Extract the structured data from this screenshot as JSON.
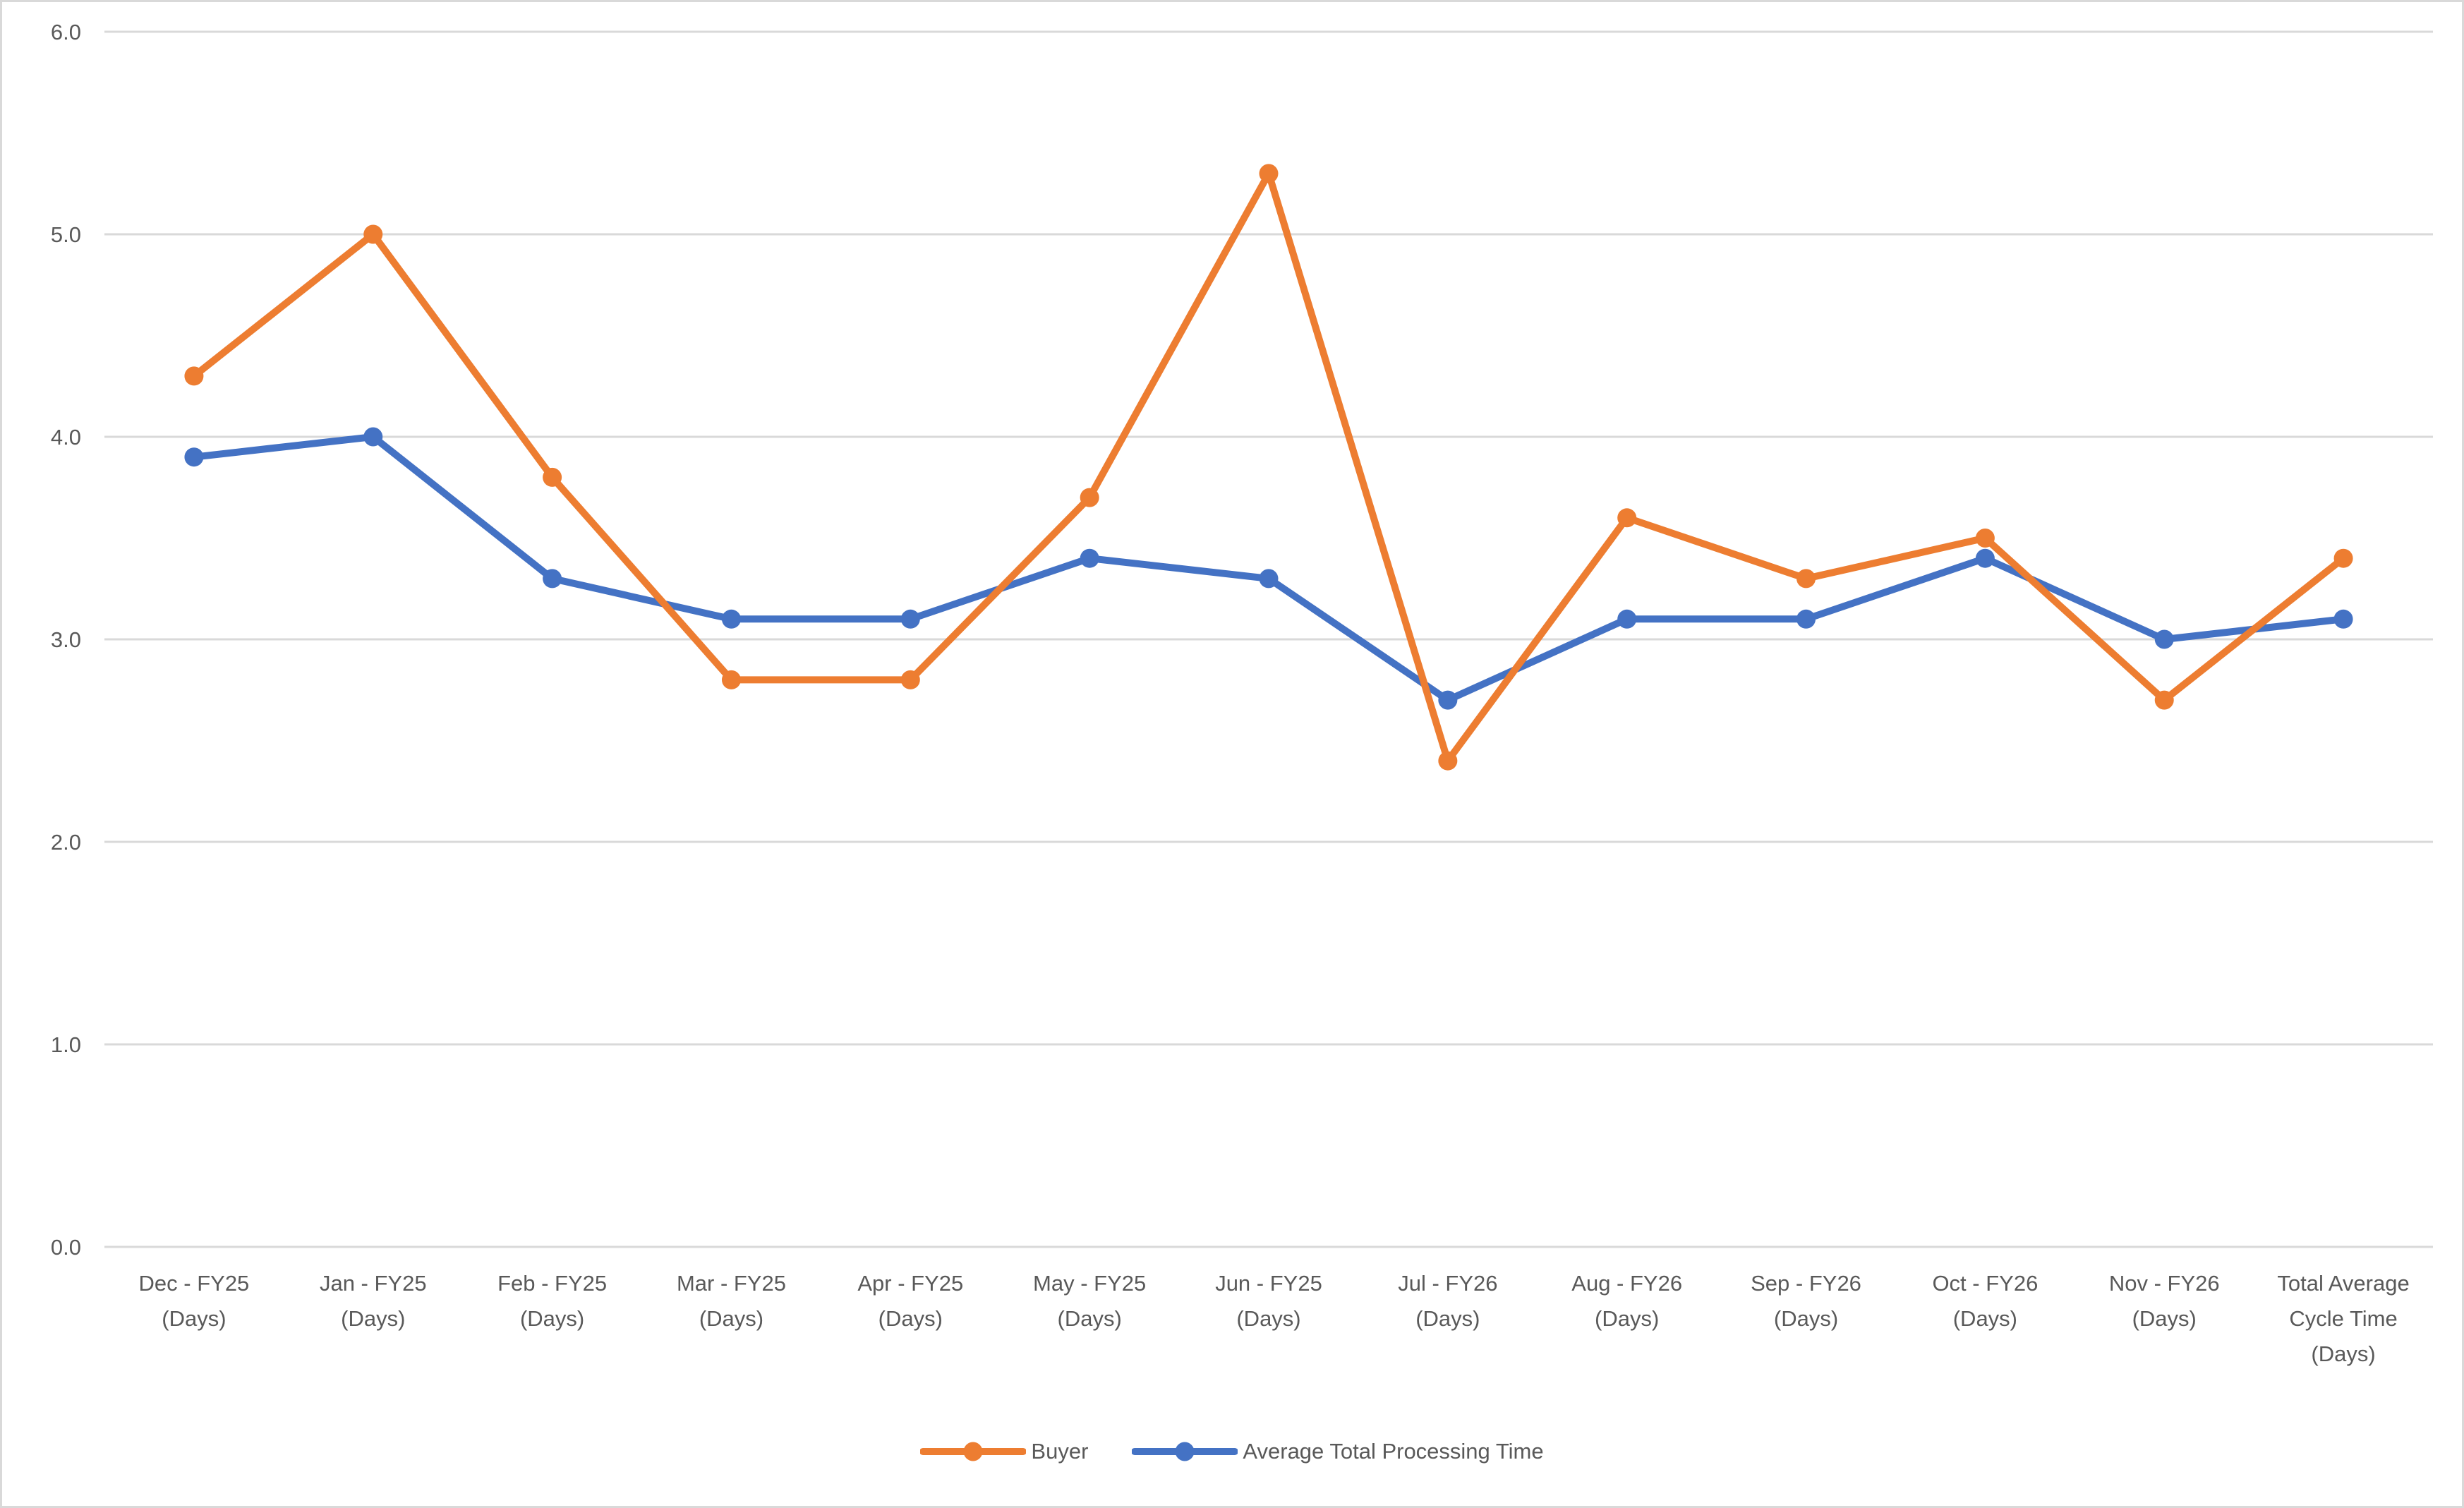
{
  "chart_data": {
    "type": "line",
    "title": "",
    "categories": [
      "Dec - FY25 (Days)",
      "Jan - FY25 (Days)",
      "Feb - FY25 (Days)",
      "Mar - FY25 (Days)",
      "Apr - FY25 (Days)",
      "May - FY25 (Days)",
      "Jun - FY25 (Days)",
      "Jul - FY26 (Days)",
      "Aug - FY26 (Days)",
      "Sep - FY26 (Days)",
      "Oct - FY26 (Days)",
      "Nov - FY26 (Days)",
      "Total Average Cycle Time (Days)"
    ],
    "category_label_lines": [
      [
        "Dec - FY25",
        "(Days)"
      ],
      [
        "Jan - FY25",
        "(Days)"
      ],
      [
        "Feb - FY25",
        "(Days)"
      ],
      [
        "Mar - FY25",
        "(Days)"
      ],
      [
        "Apr - FY25",
        "(Days)"
      ],
      [
        "May - FY25",
        "(Days)"
      ],
      [
        "Jun - FY25",
        "(Days)"
      ],
      [
        "Jul - FY26",
        "(Days)"
      ],
      [
        "Aug - FY26",
        "(Days)"
      ],
      [
        "Sep - FY26",
        "(Days)"
      ],
      [
        "Oct - FY26",
        "(Days)"
      ],
      [
        "Nov - FY26",
        "(Days)"
      ],
      [
        "Total Average",
        "Cycle Time",
        "(Days)"
      ]
    ],
    "series": [
      {
        "name": "Buyer",
        "color": "#ED7D31",
        "values": [
          4.3,
          5.0,
          3.8,
          2.8,
          2.8,
          3.7,
          5.3,
          2.4,
          3.6,
          3.3,
          3.5,
          2.7,
          3.4
        ]
      },
      {
        "name": "Average Total Processing Time",
        "color": "#4472C4",
        "values": [
          3.9,
          4.0,
          3.3,
          3.1,
          3.1,
          3.4,
          3.3,
          2.7,
          3.1,
          3.1,
          3.4,
          3.0,
          3.1
        ]
      }
    ],
    "y_axis": {
      "min": 0,
      "max": 6,
      "step": 1,
      "tick_labels": [
        "0.0",
        "1.0",
        "2.0",
        "3.0",
        "4.0",
        "5.0",
        "6.0"
      ]
    },
    "grid": true,
    "legend_position": "bottom",
    "style": {
      "gridline_color": "#D9D9D9",
      "axis_label_color": "#595959",
      "background": "#FFFFFF",
      "border_color": "#D9D9D9"
    }
  }
}
